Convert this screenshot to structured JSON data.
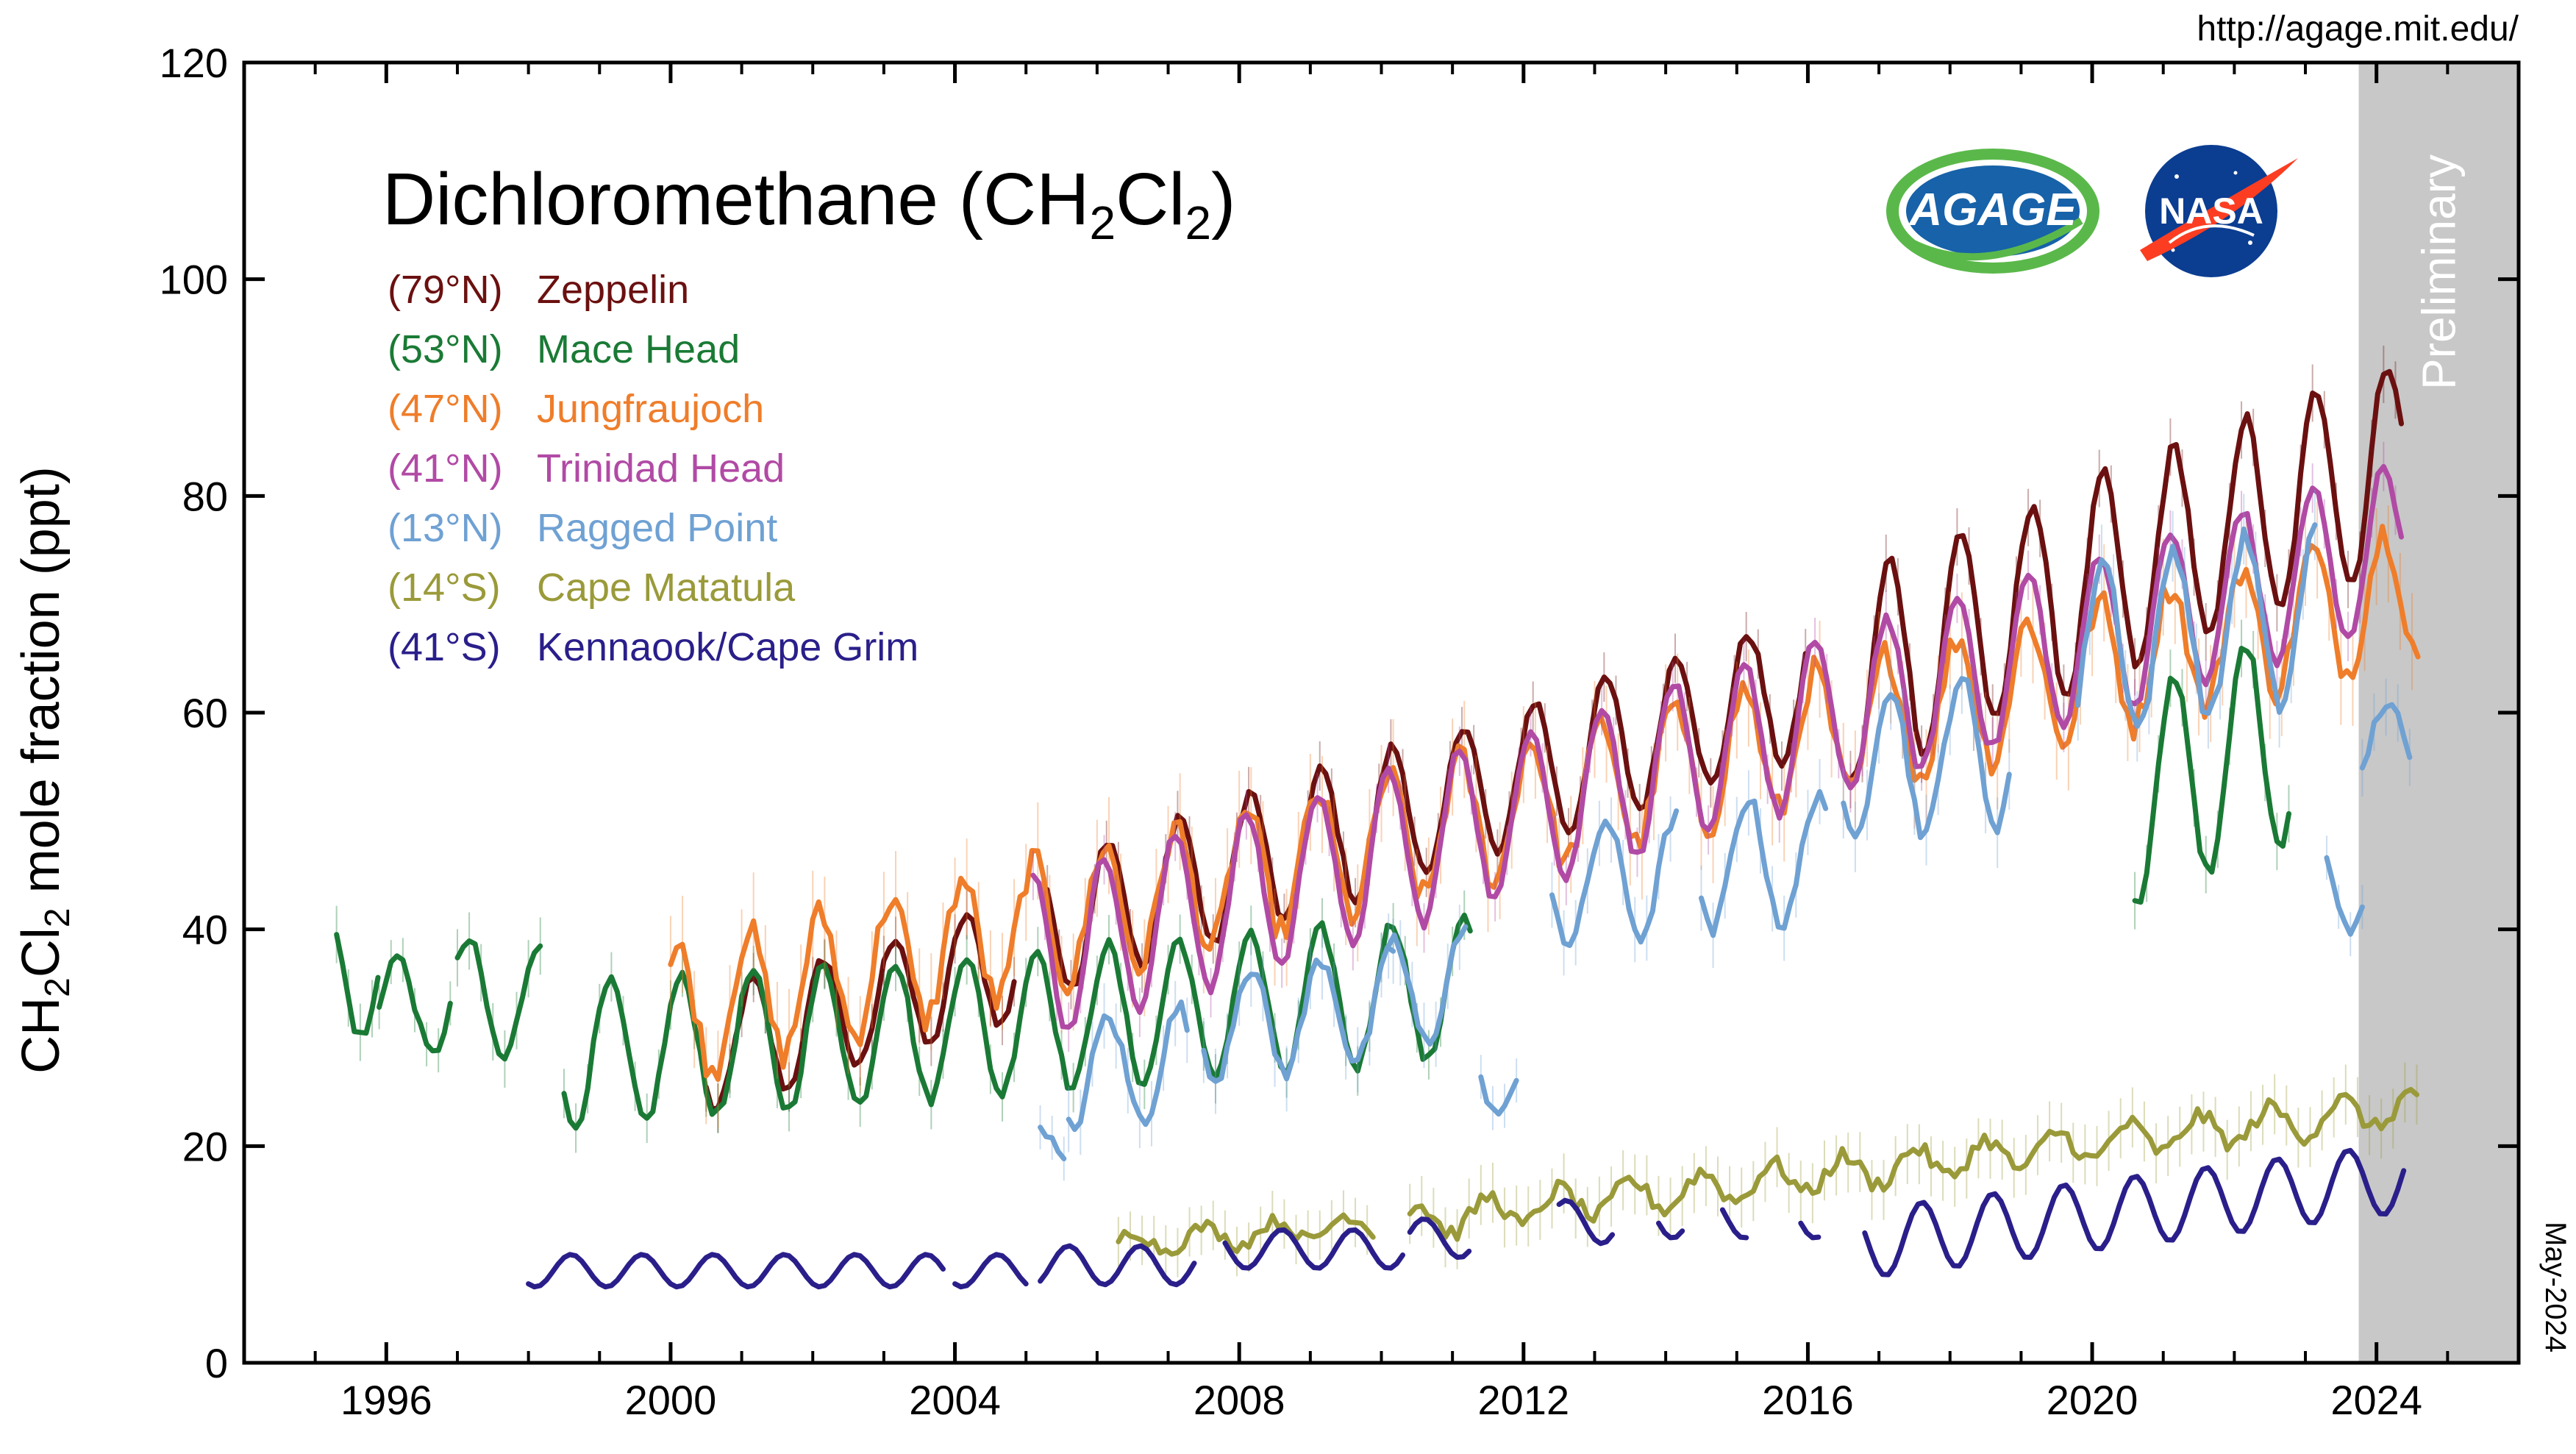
{
  "chart_data": {
    "type": "line",
    "title": "Dichloromethane (CH",
    "title_sub1": "2",
    "title_mid": "Cl",
    "title_sub2": "2",
    "title_end": ")",
    "url": "http://agage.mit.edu/",
    "date_stamp": "May-2024",
    "preliminary_label": "Preliminary",
    "preliminary_range": [
      2023.75,
      2026.0
    ],
    "ylabel": "CH2Cl2 mole fraction (ppt)",
    "ylabel_parts": [
      "CH",
      "2",
      "Cl",
      "2",
      " mole fraction (ppt)"
    ],
    "xlabel": "",
    "xlim": [
      1994.0,
      2026.0
    ],
    "ylim": [
      0,
      120
    ],
    "xticks": [
      1996,
      2000,
      2004,
      2008,
      2012,
      2016,
      2020,
      2024
    ],
    "xtick_labels": [
      "1996",
      "2000",
      "2004",
      "2008",
      "2012",
      "2016",
      "2020",
      "2024"
    ],
    "yticks": [
      0,
      20,
      40,
      60,
      80,
      100,
      120
    ],
    "ytick_labels": [
      "0",
      "20",
      "40",
      "60",
      "80",
      "100",
      "120"
    ],
    "logos": {
      "agage": "AGAGE",
      "nasa": "NASA"
    },
    "series": [
      {
        "name": "Zeppelin",
        "lat": "(79°N)",
        "color": "#6b1010",
        "segments": [
          {
            "start": 2000.5,
            "end": 2004.9,
            "base": 27.5,
            "trend": 2.0,
            "amp": 5.5,
            "phase": 0.15,
            "noise": 1.2
          },
          {
            "start": 2005.3,
            "end": 2016.0,
            "base": 29.0,
            "trend": 2.1,
            "amp": 6.5,
            "phase": 0.15,
            "noise": 1.2
          },
          {
            "start": 2016.6,
            "end": 2024.4,
            "base": 20.0,
            "trend": 2.6,
            "amp": 9.5,
            "phase": 0.15,
            "noise": 1.5
          }
        ]
      },
      {
        "name": "Mace Head",
        "lat": "(53°N)",
        "color": "#1a7a35",
        "segments": [
          {
            "start": 1995.3,
            "end": 1995.9,
            "base": 36.0,
            "trend": 0.0,
            "amp": 6.0,
            "phase": 0.15,
            "noise": 1.5
          },
          {
            "start": 1995.9,
            "end": 1996.9,
            "base": 33.0,
            "trend": 0.0,
            "amp": 4.5,
            "phase": 0.15,
            "noise": 1.0
          },
          {
            "start": 1997.0,
            "end": 1998.2,
            "base": 33.5,
            "trend": 0.0,
            "amp": 5.5,
            "phase": 0.15,
            "noise": 1.5
          },
          {
            "start": 1998.5,
            "end": 2011.3,
            "base": 29.0,
            "trend": 0.5,
            "amp": 6.5,
            "phase": 0.15,
            "noise": 1.2
          },
          {
            "start": 2020.6,
            "end": 2022.8,
            "base": -10.0,
            "trend": 3.0,
            "amp": 10.0,
            "phase": 0.15,
            "noise": 1.5
          }
        ]
      },
      {
        "name": "Jungfraujoch",
        "lat": "(47°N)",
        "color": "#ef7d2a",
        "segments": [
          {
            "start": 2000.0,
            "end": 2024.6,
            "base": 32.0,
            "trend": 1.6,
            "amp": 6.0,
            "phase": 0.1,
            "noise": 3.0
          }
        ]
      },
      {
        "name": "Trinidad Head",
        "lat": "(41°N)",
        "color": "#b14aa5",
        "segments": [
          {
            "start": 2005.1,
            "end": 2024.4,
            "base": 27.0,
            "trend": 2.0,
            "amp": 7.5,
            "phase": 0.1,
            "noise": 1.2
          }
        ]
      },
      {
        "name": "Ragged Point",
        "lat": "(13°N)",
        "color": "#6fa1d3",
        "segments": [
          {
            "start": 2005.2,
            "end": 2005.6,
            "base": 20.0,
            "trend": 0.0,
            "amp": 2.0,
            "phase": 0.15,
            "noise": 1.0
          },
          {
            "start": 2005.6,
            "end": 2007.3,
            "base": 22.0,
            "trend": 0.8,
            "amp": 5.0,
            "phase": 0.15,
            "noise": 1.8
          },
          {
            "start": 2007.5,
            "end": 2010.2,
            "base": 25.0,
            "trend": 0.8,
            "amp": 5.0,
            "phase": 0.15,
            "noise": 1.8
          },
          {
            "start": 2010.1,
            "end": 2011.2,
            "base": 26.0,
            "trend": 0.8,
            "amp": 5.0,
            "phase": 0.15,
            "noise": 1.8
          },
          {
            "start": 2011.4,
            "end": 2011.9,
            "base": 26.0,
            "trend": 0.0,
            "amp": 3.0,
            "phase": 0.15,
            "noise": 1.0
          },
          {
            "start": 2012.4,
            "end": 2014.2,
            "base": 34.0,
            "trend": 0.8,
            "amp": 5.5,
            "phase": 0.15,
            "noise": 1.8
          },
          {
            "start": 2014.5,
            "end": 2016.3,
            "base": 37.0,
            "trend": 0.6,
            "amp": 6.0,
            "phase": 0.15,
            "noise": 1.8
          },
          {
            "start": 2016.5,
            "end": 2018.9,
            "base": 40.0,
            "trend": 0.9,
            "amp": 7.0,
            "phase": 0.15,
            "noise": 2.0
          },
          {
            "start": 2019.8,
            "end": 2023.2,
            "base": 46.0,
            "trend": 1.0,
            "amp": 8.0,
            "phase": 0.15,
            "noise": 2.0
          },
          {
            "start": 2023.3,
            "end": 2023.8,
            "base": 44.0,
            "trend": 0.0,
            "amp": 4.0,
            "phase": 0.15,
            "noise": 1.0
          },
          {
            "start": 2023.8,
            "end": 2024.5,
            "base": 57.0,
            "trend": 0.0,
            "amp": 4.0,
            "phase": 0.15,
            "noise": 1.5
          }
        ]
      },
      {
        "name": "Cape Matatula",
        "lat": "(14°S)",
        "color": "#9a9a3a",
        "segments": [
          {
            "start": 2006.3,
            "end": 2009.9,
            "base": 11.0,
            "trend": 0.5,
            "amp": 1.0,
            "phase": 0.5,
            "noise": 1.2
          },
          {
            "start": 2010.4,
            "end": 2024.6,
            "base": 13.0,
            "trend": 0.75,
            "amp": 1.5,
            "phase": 0.5,
            "noise": 1.6
          }
        ]
      },
      {
        "name": "Kennaook/Cape Grim",
        "lat": "(41°S)",
        "color": "#2a1f8a",
        "segments": [
          {
            "start": 1998.0,
            "end": 2003.9,
            "base": 8.5,
            "trend": 0.0,
            "amp": 1.5,
            "phase": 0.6,
            "noise": 0.0
          },
          {
            "start": 2004.0,
            "end": 2005.0,
            "base": 8.5,
            "trend": 0.0,
            "amp": 1.5,
            "phase": 0.6,
            "noise": 0.0
          },
          {
            "start": 2005.2,
            "end": 2007.4,
            "base": 9.0,
            "trend": 0.0,
            "amp": 1.8,
            "phase": 0.6,
            "noise": 0.0
          },
          {
            "start": 2007.8,
            "end": 2010.3,
            "base": 10.5,
            "trend": 0.0,
            "amp": 1.8,
            "phase": 0.6,
            "noise": 0.0
          },
          {
            "start": 2010.4,
            "end": 2011.3,
            "base": 11.5,
            "trend": 0.0,
            "amp": 1.8,
            "phase": 0.6,
            "noise": 0.0
          },
          {
            "start": 2012.5,
            "end": 2013.3,
            "base": 13.0,
            "trend": 0.0,
            "amp": 2.0,
            "phase": 0.6,
            "noise": 0.0
          },
          {
            "start": 2013.9,
            "end": 2014.3,
            "base": 13.5,
            "trend": 0.0,
            "amp": 2.0,
            "phase": 0.6,
            "noise": 0.0
          },
          {
            "start": 2014.8,
            "end": 2015.2,
            "base": 13.5,
            "trend": 0.0,
            "amp": 2.0,
            "phase": 0.6,
            "noise": 0.0
          },
          {
            "start": 2015.9,
            "end": 2016.2,
            "base": 13.5,
            "trend": 0.0,
            "amp": 2.0,
            "phase": 0.6,
            "noise": 0.0
          },
          {
            "start": 2016.8,
            "end": 2024.4,
            "base": 11.0,
            "trend": 0.8,
            "amp": 3.2,
            "phase": 0.6,
            "noise": 0.0
          }
        ]
      }
    ]
  }
}
